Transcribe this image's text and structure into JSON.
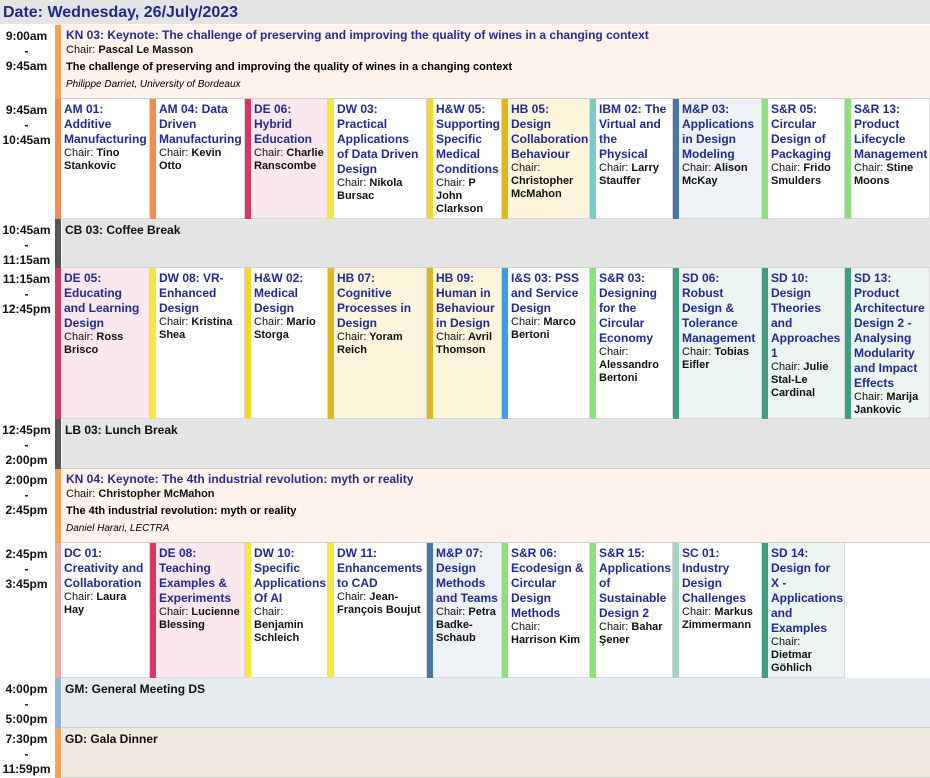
{
  "header": {
    "date": "Date: Wednesday, 26/July/2023"
  },
  "chair_label": "Chair:",
  "slots": [
    {
      "id": "s1",
      "start": "9:00am",
      "sep": "-",
      "end": "9:45am"
    },
    {
      "id": "s2",
      "start": "9:45am",
      "sep": "-",
      "end": "10:45am"
    },
    {
      "id": "s3",
      "start": "10:45am",
      "sep": "-",
      "end": "11:15am"
    },
    {
      "id": "s4",
      "start": "11:15am",
      "sep": "-",
      "end": "12:45pm"
    },
    {
      "id": "s5",
      "start": "12:45pm",
      "sep": "-",
      "end": "2:00pm"
    },
    {
      "id": "s6",
      "start": "2:00pm",
      "sep": "-",
      "end": "2:45pm"
    },
    {
      "id": "s7",
      "start": "2:45pm",
      "sep": "-",
      "end": "3:45pm"
    },
    {
      "id": "s8",
      "start": "4:00pm",
      "sep": "-",
      "end": "5:00pm"
    },
    {
      "id": "s9",
      "start": "7:30pm",
      "sep": "-",
      "end": "11:59pm"
    }
  ],
  "keynote1": {
    "title": "KN 03: Keynote: The challenge of preserving and improving the quality of wines in a changing context",
    "chair": "Pascal Le Masson",
    "talk": "The challenge of preserving and improving the quality of wines in a changing context",
    "author": "Philippe Darriet, University of Bordeaux",
    "bar_color": "#f6a25a",
    "bg_color": "#fdf3ea"
  },
  "keynote2": {
    "title": "KN 04: Keynote: The 4th industrial revolution: myth or reality",
    "chair": "Christopher McMahon",
    "talk": "The 4th industrial revolution: myth or reality",
    "author": "Daniel Harari, LECTRA",
    "bar_color": "#f6a25a",
    "bg_color": "#fdf3ea"
  },
  "breaks": [
    {
      "label": "CB 03: Coffee Break",
      "bg": "#e4e4e4",
      "bar": "#555555"
    },
    {
      "label": "LB 03: Lunch Break",
      "bg": "#e4e4e4",
      "bar": "#555555"
    },
    {
      "label": "GM: General Meeting DS",
      "bg": "#e6ebef",
      "bar": "#8fb9d6"
    },
    {
      "label": "GD: Gala Dinner",
      "bg": "#f1e8df",
      "bar": "#f6a25a"
    }
  ],
  "sessions_row1": [
    {
      "title": "AM 01: Additive Manufacturing",
      "chair": "Tino Stankovic",
      "bar": "#f28c55",
      "bg": "#ffffff"
    },
    {
      "title": "AM 04: Data Driven Manufacturing",
      "chair": "Kevin Otto",
      "bar": "#f28c55",
      "bg": "#ffffff"
    },
    {
      "title": "DE 06: Hybrid Education",
      "chair": "Charlie Ranscombe",
      "bar": "#d23a64",
      "bg": "#fbe8ee"
    },
    {
      "title": "DW 03: Practical Applications of Data Driven Design",
      "chair": "Nikola Bursac",
      "bar": "#f5e642",
      "bg": "#ffffff"
    },
    {
      "title": "H&W 05: Supporting Specific Medical Conditions",
      "chair": "P John Clarkson",
      "bar": "#f5d72a",
      "bg": "#ffffff"
    },
    {
      "title": "HB 05: Design Collaboration Behaviour",
      "chair": "Christopher McMahon",
      "bar": "#e2b61d",
      "bg": "#fdf6dc"
    },
    {
      "title": "IBM 02: The Virtual and the Physical",
      "chair": "Larry Stauffer",
      "bar": "#7fc9c9",
      "bg": "#ffffff"
    },
    {
      "title": "M&P 03: Applications in Design Modeling",
      "chair": "Alison McKay",
      "bar": "#4a76a8",
      "bg": "#eef1f6"
    },
    {
      "title": "S&R 05: Circular Design of Packaging",
      "chair": "Frido Smulders",
      "bar": "#8de07e",
      "bg": "#ffffff"
    },
    {
      "title": "S&R 13: Product Lifecycle Management",
      "chair": "Stine Moons",
      "bar": "#8de07e",
      "bg": "#ffffff"
    }
  ],
  "sessions_row2": [
    {
      "title": "DE 05: Educating and Learning Design",
      "chair": "Ross Brisco",
      "bar": "#d23a64",
      "bg": "#fbe8ee"
    },
    {
      "title": "DW 08: VR-Enhanced Design",
      "chair": "Kristina Shea",
      "bar": "#f5e642",
      "bg": "#ffffff"
    },
    {
      "title": "H&W 02: Medical Design",
      "chair": "Mario Storga",
      "bar": "#f5d72a",
      "bg": "#ffffff"
    },
    {
      "title": "HB 07: Cognitive Processes in Design",
      "chair": "Yoram Reich",
      "bar": "#e2b61d",
      "bg": "#fdf6dc"
    },
    {
      "title": "HB 09: Human in Behaviour in Design",
      "chair": "Avril Thomson",
      "bar": "#e2b61d",
      "bg": "#fdf6dc"
    },
    {
      "title": "I&S 03: PSS and Service Design",
      "chair": "Marco Bertoni",
      "bar": "#3f9fdc",
      "bg": "#ffffff"
    },
    {
      "title": "S&R 03: Designing for the Circular Economy",
      "chair": "Alessandro Bertoni",
      "bar": "#8de07e",
      "bg": "#ffffff"
    },
    {
      "title": "SD 06: Robust Design & Tolerance Management",
      "chair": "Tobias Eifler",
      "bar": "#3f9e84",
      "bg": "#edf5f2"
    },
    {
      "title": "SD 10: Design Theories and Approaches 1",
      "chair": "Julie Stal-Le Cardinal",
      "bar": "#3f9e84",
      "bg": "#edf5f2"
    },
    {
      "title": "SD 13: Product Architecture Design 2 - Analysing Modularity and Impact Effects",
      "chair": "Marija Jankovic",
      "bar": "#3f9e84",
      "bg": "#edf5f2"
    }
  ],
  "sessions_row3": [
    {
      "title": "DC 01: Creativity and Collaboration",
      "chair": "Laura Hay",
      "bar": "#f2a7a7",
      "bg": "#ffffff"
    },
    {
      "title": "DE 08: Teaching Examples & Experiments",
      "chair": "Lucienne Blessing",
      "bar": "#d23a64",
      "bg": "#fbe8ee"
    },
    {
      "title": "DW 10: Specific Applications Of AI",
      "chair": "Benjamin Schleich",
      "bar": "#f5e642",
      "bg": "#ffffff"
    },
    {
      "title": "DW 11: Enhancements to CAD",
      "chair": "Jean-François Boujut",
      "bar": "#f5e642",
      "bg": "#ffffff"
    },
    {
      "title": "M&P 07: Design Methods and Teams",
      "chair": "Petra Badke-Schaub",
      "bar": "#4a76a8",
      "bg": "#eef1f6"
    },
    {
      "title": "S&R 06: Ecodesign & Circular Design Methods",
      "chair": "Harrison Kim",
      "bar": "#8de07e",
      "bg": "#ffffff"
    },
    {
      "title": "S&R 15: Applications of Sustainable Design 2",
      "chair": "Bahar Şener",
      "bar": "#8de07e",
      "bg": "#ffffff"
    },
    {
      "title": "SC 01: Industry Design Challenges",
      "chair": "Markus Zimmermann",
      "bar": "#9ed6c3",
      "bg": "#ffffff"
    },
    {
      "title": "SD 14: Design for X - Applications and Examples",
      "chair": "Dietmar Göhlich",
      "bar": "#3f9e84",
      "bg": "#edf5f2"
    }
  ]
}
